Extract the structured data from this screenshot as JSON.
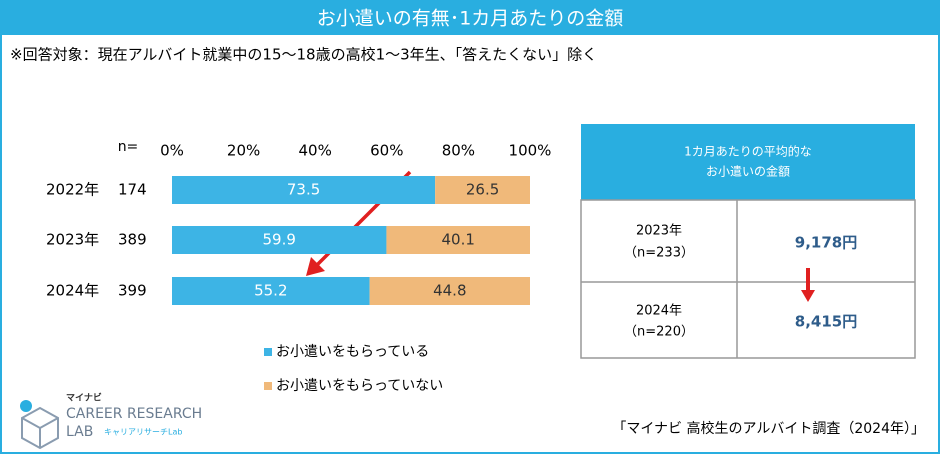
{
  "header": {
    "title": "お小遣いの有無･1カ月あたりの金額"
  },
  "note": "※回答対象：現在アルバイト就業中の15～18歳の高校1～3年生、「答えたくない」除く",
  "chart_data": {
    "type": "bar",
    "orientation": "horizontal",
    "stacked": true,
    "categories": [
      "2022年",
      "2023年",
      "2024年"
    ],
    "n_label": "n=",
    "n": [
      174,
      389,
      399
    ],
    "series": [
      {
        "name": "お小遣いをもらっている",
        "color": "#3db4e5",
        "values": [
          73.5,
          59.9,
          55.2
        ]
      },
      {
        "name": "お小遣いをもらっていない",
        "color": "#f0b97a",
        "values": [
          26.5,
          40.1,
          44.8
        ]
      }
    ],
    "xlim": [
      0,
      100
    ],
    "xticks": [
      {
        "value": 0,
        "label": "0%"
      },
      {
        "value": 20,
        "label": "20%"
      },
      {
        "value": 40,
        "label": "40%"
      },
      {
        "value": 60,
        "label": "60%"
      },
      {
        "value": 80,
        "label": "80%"
      },
      {
        "value": 100,
        "label": "100%"
      }
    ]
  },
  "table": {
    "header_lines": [
      "1カ月あたりの平均的な",
      "お小遣いの金額"
    ],
    "rows": [
      [
        "2023年",
        "（n=233）",
        "9,178円"
      ],
      [
        "2024年",
        "（n=220）",
        "8,415円"
      ]
    ]
  },
  "source": "「マイナビ 高校生のアルバイト調査（2024年）」",
  "logo": {
    "brand": "マイナビ",
    "line1": "CAREER RESEARCH",
    "line2": "LAB",
    "sub": "キャリアリサーチLab"
  }
}
